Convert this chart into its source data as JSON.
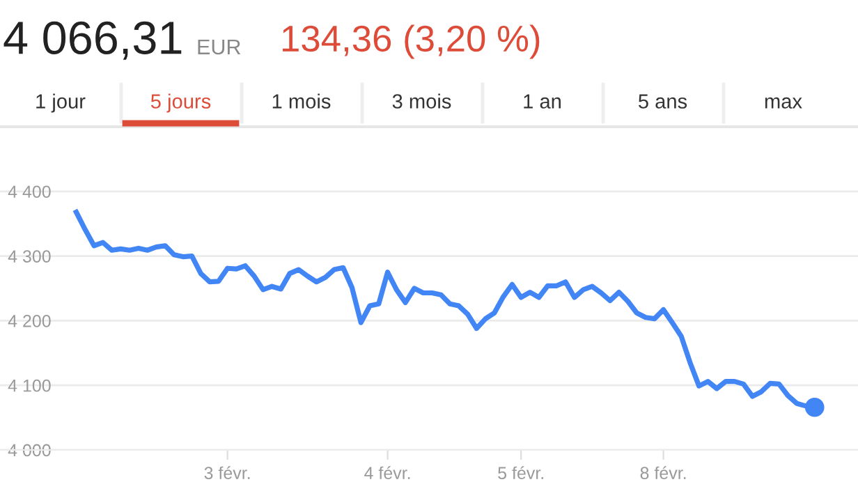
{
  "chart_data": {
    "type": "line",
    "title": "4 066,31",
    "annotations": [
      "EUR",
      "134,36 (3,20 %)",
      "1 jour",
      "5 jours",
      "1 mois",
      "3 mois",
      "1 an",
      "5 ans",
      "max"
    ],
    "categories": [
      null,
      null,
      null,
      null,
      null,
      null,
      null,
      null,
      null,
      null,
      null,
      null,
      null,
      null,
      null,
      null,
      null,
      "3 févr.",
      null,
      null,
      null,
      null,
      null,
      null,
      null,
      null,
      null,
      null,
      null,
      null,
      null,
      null,
      null,
      null,
      null,
      "4 févr.",
      null,
      null,
      null,
      null,
      null,
      null,
      null,
      null,
      null,
      null,
      null,
      null,
      null,
      null,
      "5 févr.",
      null,
      null,
      null,
      null,
      null,
      null,
      null,
      null,
      null,
      null,
      null,
      null,
      null,
      null,
      null,
      "8 févr.",
      null,
      null,
      null,
      null,
      null,
      null,
      null,
      null,
      null,
      null,
      null,
      null,
      null,
      null,
      null,
      null,
      null
    ],
    "ylim": [
      4000,
      4500
    ],
    "yticks": [
      {
        "value": 4000,
        "label": "4 000"
      },
      {
        "value": 4100,
        "label": "4 100"
      },
      {
        "value": 4200,
        "label": "4 200"
      },
      {
        "value": 4300,
        "label": "4 300"
      },
      {
        "value": 4400,
        "label": "4 400"
      }
    ],
    "grid": "y",
    "series": [
      {
        "type": "line",
        "color": "#4285f4",
        "values": [
          4368,
          4341,
          4316,
          4321,
          4309,
          4311,
          4309,
          4312,
          4309,
          4314,
          4316,
          4302,
          4299,
          4300,
          4273,
          4260,
          4261,
          4281,
          4280,
          4285,
          4269,
          4248,
          4253,
          4249,
          4273,
          4279,
          4269,
          4260,
          4267,
          4279,
          4282,
          4251,
          4197,
          4223,
          4226,
          4275,
          4248,
          4228,
          4250,
          4243,
          4243,
          4240,
          4226,
          4223,
          4210,
          4188,
          4203,
          4212,
          4237,
          4256,
          4236,
          4244,
          4236,
          4254,
          4254,
          4260,
          4236,
          4248,
          4253,
          4243,
          4231,
          4244,
          4230,
          4212,
          4205,
          4203,
          4217,
          4197,
          4176,
          4135,
          4099,
          4106,
          4095,
          4106,
          4106,
          4102,
          4083,
          4090,
          4103,
          4102,
          4084,
          4072,
          4068,
          4066
        ]
      },
      {
        "type": "scatter",
        "color": "#4285f4",
        "marker": "circle",
        "values": [
          null,
          null,
          null,
          null,
          null,
          null,
          null,
          null,
          null,
          null,
          null,
          null,
          null,
          null,
          null,
          null,
          null,
          null,
          null,
          null,
          null,
          null,
          null,
          null,
          null,
          null,
          null,
          null,
          null,
          null,
          null,
          null,
          null,
          null,
          null,
          null,
          null,
          null,
          null,
          null,
          null,
          null,
          null,
          null,
          null,
          null,
          null,
          null,
          null,
          null,
          null,
          null,
          null,
          null,
          null,
          null,
          null,
          null,
          null,
          null,
          null,
          null,
          null,
          null,
          null,
          null,
          null,
          null,
          null,
          null,
          null,
          null,
          null,
          null,
          null,
          null,
          null,
          null,
          null,
          null,
          null,
          null,
          null,
          4066
        ]
      }
    ]
  }
}
